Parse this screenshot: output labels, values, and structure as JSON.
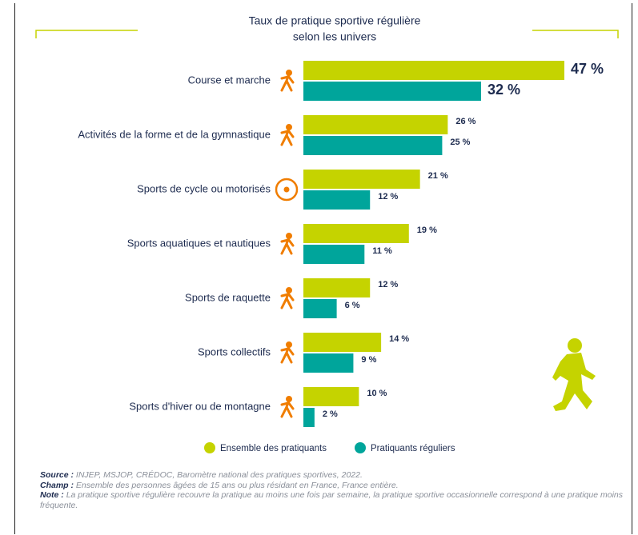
{
  "chart_data": {
    "type": "barh",
    "title": "Taux de pratique sportive régulière",
    "subtitle": "selon les univers",
    "categories": [
      "Course et marche",
      "Activités  de la forme et de la gymnastique",
      "Sports de cycle ou motorisés",
      "Sports aquatiques et nautiques",
      "Sports de raquette",
      "Sports collectifs",
      "Sports d'hiver ou de montagne"
    ],
    "series": [
      {
        "name": "Ensemble des pratiquants",
        "color": "#c5d300",
        "values": [
          47,
          26,
          21,
          19,
          12,
          14,
          10
        ],
        "value_labels": [
          "47 %",
          "26 %",
          "21 %",
          "19 %",
          "12 %",
          "14 %",
          "10 %"
        ]
      },
      {
        "name": "Pratiquants réguliers",
        "color": "#00a59b",
        "values": [
          32,
          25,
          12,
          11,
          6,
          9,
          2
        ],
        "value_labels": [
          "32 %",
          "25 %",
          "12 %",
          "11 %",
          "6 %",
          "9 %",
          "2 %"
        ]
      }
    ],
    "legend": "bottom",
    "notes": [
      {
        "label": "Source :",
        "text": " INJEP, MSJOP, CRÉDOC, Baromètre national des pratiques sportives, 2022."
      },
      {
        "label": "Champ :",
        "text": " Ensemble des personnes âgées de 15 ans ou plus résidant en France, France entière."
      },
      {
        "label": "Note :",
        "text": " La pratique sportive régulière recouvre la pratique au moins une fois par semaine, la pratique sportive occasionnelle correspond à une pratique moins fréquente."
      }
    ]
  }
}
